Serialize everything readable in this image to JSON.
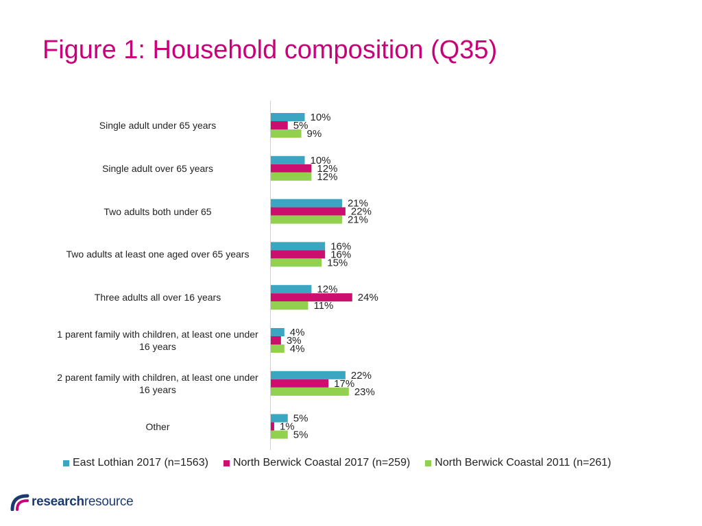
{
  "page": {
    "title": "Figure 1: Household composition (Q35)",
    "logo": {
      "bold": "research",
      "regular": "resource"
    }
  },
  "colors": {
    "title": "#c8007a",
    "series": [
      "#3aa6c1",
      "#cc0f6e",
      "#92d050"
    ]
  },
  "chart_data": {
    "type": "bar",
    "orientation": "horizontal",
    "title": "Figure 1: Household composition (Q35)",
    "categories": [
      "Single adult under 65 years",
      "Single adult over 65 years",
      "Two adults both under 65",
      "Two adults at least one aged over 65 years",
      "Three adults all over 16 years",
      "1 parent family with children, at least one under 16 years",
      "2 parent family with children, at least one under 16 years",
      "Other"
    ],
    "series": [
      {
        "name": "East Lothian 2017 (n=1563)",
        "values": [
          10,
          10,
          21,
          16,
          12,
          4,
          22,
          5
        ]
      },
      {
        "name": "North Berwick Coastal 2017 (n=259)",
        "values": [
          5,
          12,
          22,
          16,
          24,
          3,
          17,
          1
        ]
      },
      {
        "name": "North Berwick Coastal 2011 (n=261)",
        "values": [
          9,
          12,
          21,
          15,
          11,
          4,
          23,
          5
        ]
      }
    ],
    "value_suffix": "%",
    "xlim": [
      0,
      100
    ],
    "legend": "bottom",
    "grid": false
  }
}
